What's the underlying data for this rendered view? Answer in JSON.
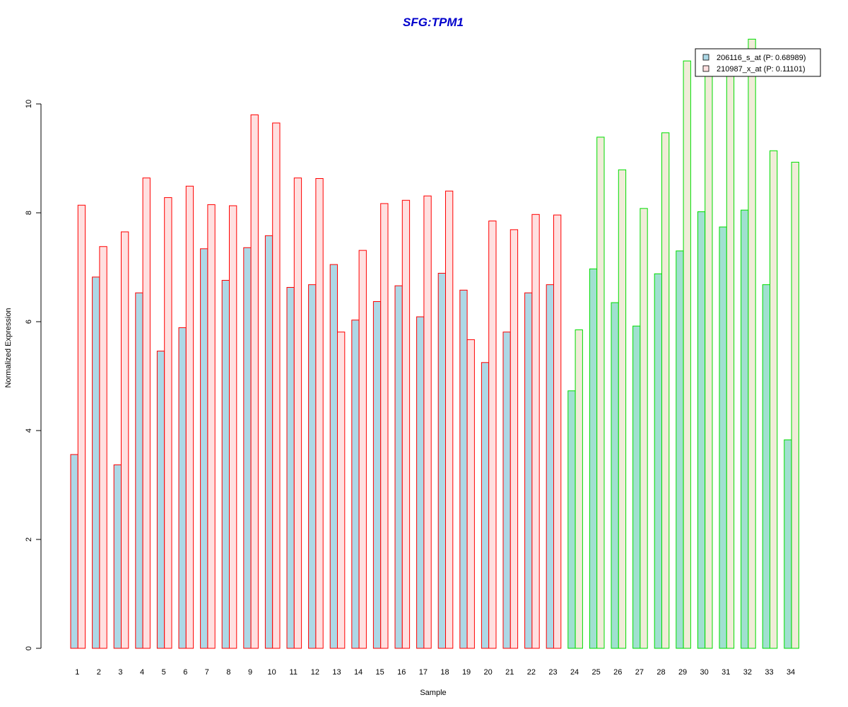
{
  "chart_data": {
    "type": "bar",
    "title": "SFG:TPM1",
    "xlabel": "Sample",
    "ylabel": "Normalized Expression",
    "ylim": [
      0,
      11.3
    ],
    "yticks": [
      "0",
      "2",
      "4",
      "6",
      "8",
      "10"
    ],
    "categories": [
      "1",
      "2",
      "3",
      "4",
      "5",
      "6",
      "7",
      "8",
      "9",
      "10",
      "11",
      "12",
      "13",
      "14",
      "15",
      "16",
      "17",
      "18",
      "19",
      "20",
      "21",
      "22",
      "23",
      "24",
      "25",
      "26",
      "27",
      "28",
      "29",
      "30",
      "31",
      "32",
      "33",
      "34"
    ],
    "group_split_after": 23,
    "series": [
      {
        "name": "206116_s_at (P: 0.68989)",
        "values": [
          3.56,
          6.82,
          3.37,
          6.53,
          5.46,
          5.89,
          7.34,
          6.76,
          7.36,
          7.58,
          6.63,
          6.68,
          7.05,
          6.03,
          6.37,
          6.66,
          6.09,
          6.89,
          6.58,
          5.25,
          5.81,
          6.53,
          6.68,
          4.73,
          6.97,
          6.35,
          5.92,
          6.88,
          7.3,
          8.02,
          7.74,
          8.05,
          6.68,
          3.83
        ]
      },
      {
        "name": "210987_x_at (P: 0.11101)",
        "values": [
          8.14,
          7.38,
          7.65,
          8.64,
          8.28,
          8.49,
          8.15,
          8.13,
          9.8,
          9.65,
          8.64,
          8.63,
          5.81,
          7.31,
          8.17,
          8.23,
          8.31,
          8.4,
          5.67,
          7.85,
          7.69,
          7.97,
          7.96,
          5.85,
          9.39,
          8.79,
          8.08,
          9.47,
          10.79,
          10.7,
          10.62,
          11.19,
          9.14,
          8.93
        ]
      }
    ],
    "colors": {
      "title": "#0000cc",
      "group1_fill_a": "#add8e6",
      "group1_fill_b": "#ffe0e0",
      "group1_border": "#ff0000",
      "group2_fill_a": "#a0e0d0",
      "group2_fill_b": "#f0ecd8",
      "group2_border": "#00dd00",
      "axis": "#000000"
    },
    "legend_position": "top-right",
    "grid": false
  }
}
